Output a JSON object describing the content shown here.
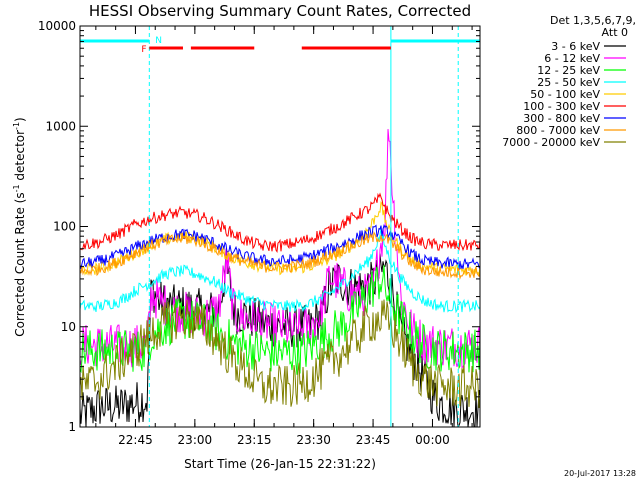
{
  "chart_data": {
    "type": "line",
    "title": "HESSI Observing Summary Count Rates, Corrected",
    "xlabel": "Start Time (26-Jan-15 22:31:22)",
    "ylabel_main": "Corrected Count Rate (s",
    "ylabel_sup1": "-1",
    "ylabel_mid": " detector",
    "ylabel_sup2": "-1",
    "ylabel_end": ")",
    "yscale": "log",
    "ylim": [
      1,
      10000
    ],
    "xlim": [
      "22:31",
      "00:12"
    ],
    "x_tick_labels": [
      "22:45",
      "23:00",
      "23:15",
      "23:30",
      "23:45",
      "00:00"
    ],
    "x_tick_minutes": [
      14,
      29,
      44,
      59,
      74,
      89
    ],
    "x_range_minutes": [
      0,
      101
    ],
    "y_tick_labels": [
      "1",
      "10",
      "100",
      "1000",
      "10000"
    ],
    "y_tick_values": [
      1,
      10,
      100,
      1000,
      10000
    ],
    "legend_header": [
      "Det 1,3,5,6,7,9,",
      "Att 0"
    ],
    "series": [
      {
        "name": "3 - 6 keV",
        "color": "#000000",
        "points": [
          [
            0,
            1.3
          ],
          [
            5,
            1.6
          ],
          [
            10,
            1.6
          ],
          [
            17,
            1.9
          ],
          [
            18,
            25
          ],
          [
            20,
            18
          ],
          [
            23,
            16
          ],
          [
            26,
            16
          ],
          [
            29,
            15
          ],
          [
            32,
            14
          ],
          [
            35,
            15
          ],
          [
            37,
            40
          ],
          [
            39,
            14
          ],
          [
            42,
            13
          ],
          [
            46,
            11
          ],
          [
            50,
            10
          ],
          [
            54,
            10
          ],
          [
            58,
            10
          ],
          [
            61,
            13
          ],
          [
            63,
            25
          ],
          [
            65,
            30
          ],
          [
            68,
            25
          ],
          [
            71,
            25
          ],
          [
            73,
            26
          ],
          [
            75,
            30
          ],
          [
            77,
            40
          ],
          [
            79,
            22
          ],
          [
            81,
            9
          ],
          [
            84,
            5
          ],
          [
            87,
            3
          ],
          [
            90,
            1.8
          ],
          [
            95,
            1.5
          ],
          [
            101,
            1.5
          ]
        ]
      },
      {
        "name": "6 - 12 keV",
        "color": "#ff00ff",
        "points": [
          [
            0,
            6.5
          ],
          [
            10,
            6.5
          ],
          [
            17,
            6.5
          ],
          [
            18,
            22
          ],
          [
            20,
            18
          ],
          [
            23,
            15
          ],
          [
            26,
            14
          ],
          [
            29,
            13
          ],
          [
            32,
            13
          ],
          [
            35,
            15
          ],
          [
            37,
            45
          ],
          [
            39,
            13
          ],
          [
            42,
            12
          ],
          [
            46,
            11
          ],
          [
            50,
            10
          ],
          [
            54,
            9
          ],
          [
            58,
            10
          ],
          [
            61,
            14
          ],
          [
            63,
            32
          ],
          [
            65,
            28
          ],
          [
            68,
            22
          ],
          [
            71,
            20
          ],
          [
            74,
            23
          ],
          [
            77,
            120
          ],
          [
            78,
            1100
          ],
          [
            79,
            200
          ],
          [
            81,
            20
          ],
          [
            84,
            9
          ],
          [
            87,
            7
          ],
          [
            92,
            6.5
          ],
          [
            101,
            6.5
          ]
        ]
      },
      {
        "name": "12 - 25 keV",
        "color": "#00ff00",
        "points": [
          [
            0,
            5.8
          ],
          [
            10,
            5.8
          ],
          [
            17,
            5.8
          ],
          [
            18,
            8.5
          ],
          [
            21,
            10
          ],
          [
            24,
            11.5
          ],
          [
            27,
            12
          ],
          [
            30,
            11
          ],
          [
            33,
            10
          ],
          [
            36,
            8
          ],
          [
            40,
            6.5
          ],
          [
            48,
            5.5
          ],
          [
            56,
            5.5
          ],
          [
            62,
            8
          ],
          [
            66,
            10
          ],
          [
            70,
            15
          ],
          [
            74,
            25
          ],
          [
            76,
            30
          ],
          [
            78,
            20
          ],
          [
            81,
            12
          ],
          [
            84,
            8
          ],
          [
            88,
            6
          ],
          [
            95,
            5.8
          ],
          [
            101,
            5.8
          ]
        ]
      },
      {
        "name": "25 - 50 keV",
        "color": "#00ffff",
        "points": [
          [
            0,
            16
          ],
          [
            5,
            16
          ],
          [
            10,
            18
          ],
          [
            14,
            23
          ],
          [
            18,
            28
          ],
          [
            22,
            34
          ],
          [
            26,
            36
          ],
          [
            30,
            33
          ],
          [
            34,
            28
          ],
          [
            38,
            22
          ],
          [
            42,
            19
          ],
          [
            46,
            17
          ],
          [
            50,
            16
          ],
          [
            54,
            16
          ],
          [
            58,
            17
          ],
          [
            62,
            20
          ],
          [
            66,
            26
          ],
          [
            70,
            36
          ],
          [
            73,
            46
          ],
          [
            76,
            85
          ],
          [
            78,
            50
          ],
          [
            81,
            30
          ],
          [
            84,
            22
          ],
          [
            87,
            18
          ],
          [
            91,
            16
          ],
          [
            96,
            16
          ],
          [
            101,
            16
          ]
        ]
      },
      {
        "name": "50 - 100 keV",
        "color": "#ffcc00",
        "points": [
          [
            0,
            37
          ],
          [
            5,
            38
          ],
          [
            10,
            45
          ],
          [
            14,
            55
          ],
          [
            18,
            65
          ],
          [
            22,
            75
          ],
          [
            26,
            80
          ],
          [
            30,
            75
          ],
          [
            34,
            62
          ],
          [
            38,
            50
          ],
          [
            42,
            44
          ],
          [
            46,
            40
          ],
          [
            50,
            38
          ],
          [
            54,
            38
          ],
          [
            58,
            40
          ],
          [
            62,
            46
          ],
          [
            66,
            55
          ],
          [
            70,
            72
          ],
          [
            73,
            95
          ],
          [
            76,
            160
          ],
          [
            78,
            90
          ],
          [
            81,
            60
          ],
          [
            84,
            45
          ],
          [
            87,
            40
          ],
          [
            91,
            38
          ],
          [
            96,
            37
          ],
          [
            101,
            37
          ]
        ]
      },
      {
        "name": "100 - 300 keV",
        "color": "#ff0000",
        "points": [
          [
            0,
            65
          ],
          [
            5,
            70
          ],
          [
            10,
            85
          ],
          [
            14,
            105
          ],
          [
            18,
            120
          ],
          [
            22,
            132
          ],
          [
            26,
            138
          ],
          [
            30,
            128
          ],
          [
            34,
            108
          ],
          [
            38,
            88
          ],
          [
            42,
            72
          ],
          [
            46,
            64
          ],
          [
            50,
            64
          ],
          [
            54,
            68
          ],
          [
            58,
            75
          ],
          [
            62,
            88
          ],
          [
            66,
            105
          ],
          [
            70,
            130
          ],
          [
            73,
            150
          ],
          [
            76,
            195
          ],
          [
            78,
            130
          ],
          [
            81,
            95
          ],
          [
            84,
            75
          ],
          [
            87,
            67
          ],
          [
            91,
            65
          ],
          [
            96,
            65
          ],
          [
            101,
            65
          ]
        ]
      },
      {
        "name": "300 - 800 keV",
        "color": "#0000ff",
        "points": [
          [
            0,
            42
          ],
          [
            5,
            45
          ],
          [
            10,
            52
          ],
          [
            14,
            62
          ],
          [
            18,
            72
          ],
          [
            22,
            80
          ],
          [
            26,
            84
          ],
          [
            30,
            80
          ],
          [
            34,
            68
          ],
          [
            38,
            57
          ],
          [
            42,
            50
          ],
          [
            46,
            46
          ],
          [
            50,
            45
          ],
          [
            54,
            46
          ],
          [
            58,
            50
          ],
          [
            62,
            57
          ],
          [
            66,
            66
          ],
          [
            70,
            78
          ],
          [
            73,
            87
          ],
          [
            76,
            92
          ],
          [
            78,
            88
          ],
          [
            81,
            70
          ],
          [
            84,
            52
          ],
          [
            87,
            45
          ],
          [
            91,
            43
          ],
          [
            96,
            42
          ],
          [
            101,
            42
          ]
        ]
      },
      {
        "name": "800 - 7000 keV",
        "color": "#ff9900",
        "points": [
          [
            0,
            35
          ],
          [
            5,
            38
          ],
          [
            10,
            45
          ],
          [
            14,
            55
          ],
          [
            18,
            65
          ],
          [
            22,
            72
          ],
          [
            26,
            76
          ],
          [
            30,
            72
          ],
          [
            34,
            60
          ],
          [
            38,
            50
          ],
          [
            42,
            44
          ],
          [
            46,
            40
          ],
          [
            50,
            39
          ],
          [
            54,
            40
          ],
          [
            58,
            43
          ],
          [
            62,
            50
          ],
          [
            66,
            58
          ],
          [
            70,
            68
          ],
          [
            73,
            75
          ],
          [
            76,
            80
          ],
          [
            78,
            72
          ],
          [
            81,
            55
          ],
          [
            84,
            42
          ],
          [
            87,
            37
          ],
          [
            91,
            35
          ],
          [
            96,
            35
          ],
          [
            101,
            35
          ]
        ]
      },
      {
        "name": "7000 - 20000 keV",
        "color": "#808000",
        "points": [
          [
            0,
            2.5
          ],
          [
            5,
            3
          ],
          [
            10,
            4.5
          ],
          [
            14,
            6
          ],
          [
            18,
            8.5
          ],
          [
            22,
            11
          ],
          [
            26,
            12.5
          ],
          [
            30,
            11
          ],
          [
            34,
            8
          ],
          [
            38,
            5
          ],
          [
            42,
            3.5
          ],
          [
            46,
            2.5
          ],
          [
            50,
            2.5
          ],
          [
            54,
            2.5
          ],
          [
            58,
            3
          ],
          [
            62,
            4
          ],
          [
            66,
            5.5
          ],
          [
            70,
            8
          ],
          [
            73,
            11
          ],
          [
            76,
            12
          ],
          [
            78,
            11
          ],
          [
            81,
            7
          ],
          [
            84,
            4
          ],
          [
            87,
            3
          ],
          [
            91,
            2.5
          ],
          [
            96,
            2.5
          ],
          [
            101,
            2.5
          ]
        ]
      }
    ],
    "flags": [
      {
        "label": "N",
        "color": "#00ffff",
        "segments": [
          [
            0,
            17.5
          ],
          [
            78.5,
            101
          ]
        ]
      },
      {
        "label": "F",
        "color": "#ff0000",
        "segments": [
          [
            17.5,
            26
          ],
          [
            28,
            44
          ],
          [
            56,
            78.5
          ]
        ]
      }
    ],
    "flag_label_positions_minutes": {
      "N": 19,
      "F": 15.5
    },
    "vertical_markers": [
      {
        "minute": 0,
        "color": "#00ffff",
        "style": "solid"
      },
      {
        "minute": 17.5,
        "color": "#00ffff",
        "style": "dashed"
      },
      {
        "minute": 78.5,
        "color": "#00ffff",
        "style": "solid"
      },
      {
        "minute": 95.5,
        "color": "#00ffff",
        "style": "dashed"
      }
    ]
  },
  "footer_date": "20-Jul-2017 13:28"
}
